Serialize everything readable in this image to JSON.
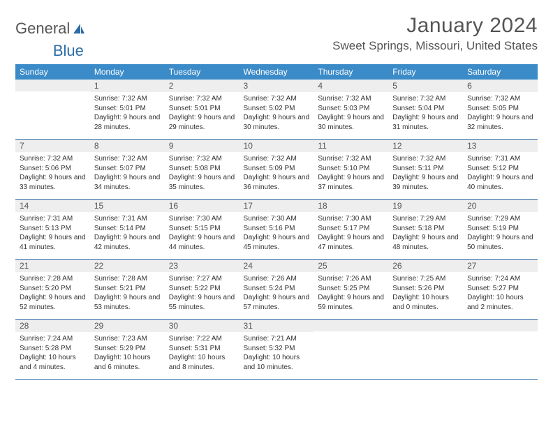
{
  "brand": {
    "part1": "General",
    "part2": "Blue"
  },
  "title": "January 2024",
  "location": "Sweet Springs, Missouri, United States",
  "weekdays": [
    "Sunday",
    "Monday",
    "Tuesday",
    "Wednesday",
    "Thursday",
    "Friday",
    "Saturday"
  ],
  "colors": {
    "header_bg": "#3b8bc8",
    "header_text": "#ffffff",
    "daynum_bg": "#eeeeee",
    "border": "#2d6ca8",
    "title_color": "#555555",
    "body_text": "#333333",
    "logo_blue": "#2d6ca8"
  },
  "typography": {
    "title_fontsize": 30,
    "location_fontsize": 17,
    "weekday_fontsize": 12,
    "daynum_fontsize": 12,
    "dayinfo_fontsize": 10
  },
  "start_offset": 1,
  "days": [
    {
      "n": 1,
      "sunrise": "7:32 AM",
      "sunset": "5:01 PM",
      "daylight": "9 hours and 28 minutes."
    },
    {
      "n": 2,
      "sunrise": "7:32 AM",
      "sunset": "5:01 PM",
      "daylight": "9 hours and 29 minutes."
    },
    {
      "n": 3,
      "sunrise": "7:32 AM",
      "sunset": "5:02 PM",
      "daylight": "9 hours and 30 minutes."
    },
    {
      "n": 4,
      "sunrise": "7:32 AM",
      "sunset": "5:03 PM",
      "daylight": "9 hours and 30 minutes."
    },
    {
      "n": 5,
      "sunrise": "7:32 AM",
      "sunset": "5:04 PM",
      "daylight": "9 hours and 31 minutes."
    },
    {
      "n": 6,
      "sunrise": "7:32 AM",
      "sunset": "5:05 PM",
      "daylight": "9 hours and 32 minutes."
    },
    {
      "n": 7,
      "sunrise": "7:32 AM",
      "sunset": "5:06 PM",
      "daylight": "9 hours and 33 minutes."
    },
    {
      "n": 8,
      "sunrise": "7:32 AM",
      "sunset": "5:07 PM",
      "daylight": "9 hours and 34 minutes."
    },
    {
      "n": 9,
      "sunrise": "7:32 AM",
      "sunset": "5:08 PM",
      "daylight": "9 hours and 35 minutes."
    },
    {
      "n": 10,
      "sunrise": "7:32 AM",
      "sunset": "5:09 PM",
      "daylight": "9 hours and 36 minutes."
    },
    {
      "n": 11,
      "sunrise": "7:32 AM",
      "sunset": "5:10 PM",
      "daylight": "9 hours and 37 minutes."
    },
    {
      "n": 12,
      "sunrise": "7:32 AM",
      "sunset": "5:11 PM",
      "daylight": "9 hours and 39 minutes."
    },
    {
      "n": 13,
      "sunrise": "7:31 AM",
      "sunset": "5:12 PM",
      "daylight": "9 hours and 40 minutes."
    },
    {
      "n": 14,
      "sunrise": "7:31 AM",
      "sunset": "5:13 PM",
      "daylight": "9 hours and 41 minutes."
    },
    {
      "n": 15,
      "sunrise": "7:31 AM",
      "sunset": "5:14 PM",
      "daylight": "9 hours and 42 minutes."
    },
    {
      "n": 16,
      "sunrise": "7:30 AM",
      "sunset": "5:15 PM",
      "daylight": "9 hours and 44 minutes."
    },
    {
      "n": 17,
      "sunrise": "7:30 AM",
      "sunset": "5:16 PM",
      "daylight": "9 hours and 45 minutes."
    },
    {
      "n": 18,
      "sunrise": "7:30 AM",
      "sunset": "5:17 PM",
      "daylight": "9 hours and 47 minutes."
    },
    {
      "n": 19,
      "sunrise": "7:29 AM",
      "sunset": "5:18 PM",
      "daylight": "9 hours and 48 minutes."
    },
    {
      "n": 20,
      "sunrise": "7:29 AM",
      "sunset": "5:19 PM",
      "daylight": "9 hours and 50 minutes."
    },
    {
      "n": 21,
      "sunrise": "7:28 AM",
      "sunset": "5:20 PM",
      "daylight": "9 hours and 52 minutes."
    },
    {
      "n": 22,
      "sunrise": "7:28 AM",
      "sunset": "5:21 PM",
      "daylight": "9 hours and 53 minutes."
    },
    {
      "n": 23,
      "sunrise": "7:27 AM",
      "sunset": "5:22 PM",
      "daylight": "9 hours and 55 minutes."
    },
    {
      "n": 24,
      "sunrise": "7:26 AM",
      "sunset": "5:24 PM",
      "daylight": "9 hours and 57 minutes."
    },
    {
      "n": 25,
      "sunrise": "7:26 AM",
      "sunset": "5:25 PM",
      "daylight": "9 hours and 59 minutes."
    },
    {
      "n": 26,
      "sunrise": "7:25 AM",
      "sunset": "5:26 PM",
      "daylight": "10 hours and 0 minutes."
    },
    {
      "n": 27,
      "sunrise": "7:24 AM",
      "sunset": "5:27 PM",
      "daylight": "10 hours and 2 minutes."
    },
    {
      "n": 28,
      "sunrise": "7:24 AM",
      "sunset": "5:28 PM",
      "daylight": "10 hours and 4 minutes."
    },
    {
      "n": 29,
      "sunrise": "7:23 AM",
      "sunset": "5:29 PM",
      "daylight": "10 hours and 6 minutes."
    },
    {
      "n": 30,
      "sunrise": "7:22 AM",
      "sunset": "5:31 PM",
      "daylight": "10 hours and 8 minutes."
    },
    {
      "n": 31,
      "sunrise": "7:21 AM",
      "sunset": "5:32 PM",
      "daylight": "10 hours and 10 minutes."
    }
  ],
  "labels": {
    "sunrise": "Sunrise:",
    "sunset": "Sunset:",
    "daylight": "Daylight:"
  }
}
